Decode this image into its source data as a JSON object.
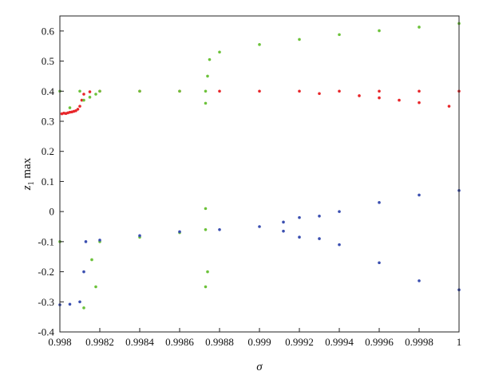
{
  "chart_data": {
    "type": "scatter",
    "title": "",
    "xlabel": "σ",
    "ylabel": {
      "var": "z",
      "subscript": "1",
      "suffix": " max"
    },
    "xlim": [
      0.998,
      1.0
    ],
    "ylim": [
      -0.4,
      0.65
    ],
    "grid": false,
    "legend": "none",
    "x_ticks": [
      {
        "value": 0.998,
        "label": "0.998"
      },
      {
        "value": 0.9982,
        "label": "0.9982"
      },
      {
        "value": 0.9984,
        "label": "0.9984"
      },
      {
        "value": 0.9986,
        "label": "0.9986"
      },
      {
        "value": 0.9988,
        "label": "0.9988"
      },
      {
        "value": 0.999,
        "label": "0.999"
      },
      {
        "value": 0.9992,
        "label": "0.9992"
      },
      {
        "value": 0.9994,
        "label": "0.9994"
      },
      {
        "value": 0.9996,
        "label": "0.9996"
      },
      {
        "value": 0.9998,
        "label": "0.9998"
      },
      {
        "value": 1.0,
        "label": "1"
      }
    ],
    "y_ticks": [
      {
        "value": -0.4,
        "label": "-0.4"
      },
      {
        "value": -0.3,
        "label": "-0.3"
      },
      {
        "value": -0.2,
        "label": "-0.2"
      },
      {
        "value": -0.1,
        "label": "-0.1"
      },
      {
        "value": 0.0,
        "label": "0"
      },
      {
        "value": 0.1,
        "label": "0.1"
      },
      {
        "value": 0.2,
        "label": "0.2"
      },
      {
        "value": 0.3,
        "label": "0.3"
      },
      {
        "value": 0.4,
        "label": "0.4"
      },
      {
        "value": 0.5,
        "label": "0.5"
      },
      {
        "value": 0.6,
        "label": "0.6"
      }
    ],
    "series": [
      {
        "color": "#e8262a",
        "points": [
          [
            0.99801,
            0.325
          ],
          [
            0.99802,
            0.327
          ],
          [
            0.99803,
            0.326
          ],
          [
            0.99804,
            0.328
          ],
          [
            0.99805,
            0.33
          ],
          [
            0.99806,
            0.331
          ],
          [
            0.99807,
            0.333
          ],
          [
            0.99808,
            0.335
          ],
          [
            0.99809,
            0.34
          ],
          [
            0.9981,
            0.35
          ],
          [
            0.99811,
            0.37
          ],
          [
            0.99812,
            0.39
          ],
          [
            0.99815,
            0.398
          ],
          [
            0.9982,
            0.4
          ],
          [
            0.9984,
            0.4
          ],
          [
            0.9986,
            0.4
          ],
          [
            0.9988,
            0.4
          ],
          [
            0.999,
            0.4
          ],
          [
            0.9992,
            0.4
          ],
          [
            0.9994,
            0.4
          ],
          [
            0.9996,
            0.4
          ],
          [
            0.9998,
            0.4
          ],
          [
            1.0,
            0.4
          ],
          [
            0.9993,
            0.392
          ],
          [
            0.9995,
            0.385
          ],
          [
            0.9996,
            0.378
          ],
          [
            0.9997,
            0.37
          ],
          [
            0.9998,
            0.362
          ],
          [
            0.99995,
            0.35
          ]
        ]
      },
      {
        "color": "#6cc23a",
        "points": [
          [
            0.998,
            0.4
          ],
          [
            0.9981,
            0.4
          ],
          [
            0.99805,
            0.345
          ],
          [
            0.99812,
            0.37
          ],
          [
            0.99815,
            0.38
          ],
          [
            0.99818,
            0.39
          ],
          [
            0.9982,
            0.4
          ],
          [
            0.9984,
            0.4
          ],
          [
            0.9986,
            0.4
          ],
          [
            0.99873,
            0.4
          ],
          [
            0.99873,
            0.36
          ],
          [
            0.99874,
            0.45
          ],
          [
            0.99875,
            0.505
          ],
          [
            0.9988,
            0.53
          ],
          [
            0.999,
            0.555
          ],
          [
            0.9992,
            0.572
          ],
          [
            0.9994,
            0.588
          ],
          [
            0.9996,
            0.601
          ],
          [
            0.9998,
            0.613
          ],
          [
            1.0,
            0.625
          ],
          [
            0.998,
            -0.1
          ],
          [
            0.9982,
            -0.1
          ],
          [
            0.9984,
            -0.085
          ],
          [
            0.9986,
            -0.07
          ],
          [
            0.99873,
            -0.06
          ],
          [
            0.99873,
            -0.25
          ],
          [
            0.99874,
            -0.2
          ],
          [
            0.99873,
            0.01
          ],
          [
            0.99818,
            -0.25
          ],
          [
            0.99816,
            -0.16
          ],
          [
            0.99812,
            -0.32
          ]
        ]
      },
      {
        "color": "#3b4fb0",
        "points": [
          [
            0.998,
            -0.31
          ],
          [
            0.99805,
            -0.308
          ],
          [
            0.9981,
            -0.3
          ],
          [
            0.99812,
            -0.2
          ],
          [
            0.99813,
            -0.1
          ],
          [
            0.9982,
            -0.095
          ],
          [
            0.9984,
            -0.08
          ],
          [
            0.9986,
            -0.067
          ],
          [
            0.9988,
            -0.06
          ],
          [
            0.999,
            -0.05
          ],
          [
            0.99912,
            -0.035
          ],
          [
            0.99912,
            -0.065
          ],
          [
            0.9992,
            -0.02
          ],
          [
            0.9992,
            -0.085
          ],
          [
            0.9993,
            -0.015
          ],
          [
            0.9993,
            -0.09
          ],
          [
            0.9994,
            0.0
          ],
          [
            0.9994,
            -0.11
          ],
          [
            0.9996,
            0.03
          ],
          [
            0.9996,
            -0.17
          ],
          [
            0.9998,
            0.055
          ],
          [
            0.9998,
            -0.23
          ],
          [
            1.0,
            0.07
          ],
          [
            1.0,
            -0.26
          ]
        ]
      }
    ]
  }
}
